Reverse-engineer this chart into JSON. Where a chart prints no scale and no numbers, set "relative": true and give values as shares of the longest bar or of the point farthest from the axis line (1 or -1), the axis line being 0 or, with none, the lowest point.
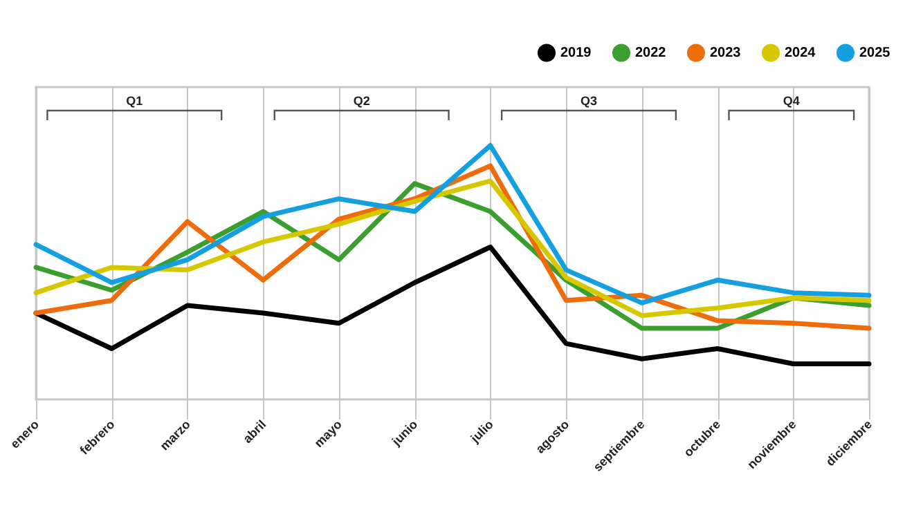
{
  "chart_data": {
    "type": "line",
    "relative": true,
    "categories": [
      "enero",
      "febrero",
      "marzo",
      "abril",
      "mayo",
      "junio",
      "julio",
      "agosto",
      "septiembre",
      "octubre",
      "noviembre",
      "diciembre"
    ],
    "series": [
      {
        "name": "2019",
        "color": "#000000",
        "values": [
          0.34,
          0.2,
          0.37,
          0.34,
          0.3,
          0.46,
          0.6,
          0.22,
          0.16,
          0.2,
          0.14,
          0.14
        ]
      },
      {
        "name": "2022",
        "color": "#3a9f2e",
        "values": [
          0.52,
          0.43,
          0.58,
          0.74,
          0.55,
          0.85,
          0.74,
          0.47,
          0.28,
          0.28,
          0.4,
          0.37
        ]
      },
      {
        "name": "2023",
        "color": "#ee6c0c",
        "values": [
          0.34,
          0.39,
          0.7,
          0.47,
          0.71,
          0.79,
          0.92,
          0.39,
          0.41,
          0.31,
          0.3,
          0.28
        ]
      },
      {
        "name": "2024",
        "color": "#d6c800",
        "values": [
          0.42,
          0.52,
          0.51,
          0.62,
          0.69,
          0.78,
          0.86,
          0.48,
          0.33,
          0.36,
          0.4,
          0.39
        ]
      },
      {
        "name": "2025",
        "color": "#14a0e0",
        "values": [
          0.61,
          0.46,
          0.55,
          0.72,
          0.79,
          0.74,
          1,
          0.51,
          0.38,
          0.47,
          0.42,
          0.41
        ]
      }
    ],
    "annotations": [
      "Q1",
      "Q2",
      "Q3",
      "Q4"
    ],
    "grid": "x",
    "legend": "top right",
    "line_style": "solid",
    "marker": "none"
  }
}
